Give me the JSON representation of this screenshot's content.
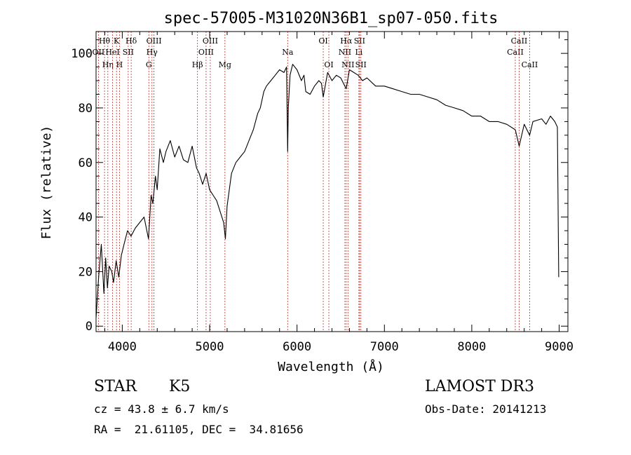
{
  "chart_data": {
    "type": "line",
    "title": "spec-57005-M31020N36B1_sp07-050.fits",
    "xlabel": "Wavelength (Å)",
    "ylabel": "Flux (relative)",
    "xlim": [
      3700,
      9100
    ],
    "ylim": [
      -2,
      108
    ],
    "xticks": [
      4000,
      5000,
      6000,
      7000,
      8000,
      9000
    ],
    "yticks": [
      0,
      20,
      40,
      60,
      80,
      100
    ],
    "grid": false,
    "series": [
      {
        "name": "spectrum",
        "x": [
          3700,
          3730,
          3760,
          3790,
          3810,
          3830,
          3850,
          3880,
          3900,
          3930,
          3960,
          3990,
          4020,
          4060,
          4100,
          4150,
          4200,
          4250,
          4300,
          4330,
          4350,
          4380,
          4400,
          4430,
          4470,
          4500,
          4550,
          4600,
          4650,
          4700,
          4750,
          4800,
          4850,
          4880,
          4920,
          4960,
          5000,
          5040,
          5080,
          5120,
          5160,
          5180,
          5200,
          5250,
          5300,
          5350,
          5400,
          5450,
          5500,
          5550,
          5580,
          5620,
          5650,
          5700,
          5750,
          5800,
          5850,
          5880,
          5893,
          5900,
          5920,
          5950,
          6000,
          6050,
          6080,
          6100,
          6150,
          6200,
          6250,
          6280,
          6300,
          6350,
          6400,
          6450,
          6500,
          6563,
          6600,
          6650,
          6700,
          6750,
          6800,
          6900,
          7000,
          7100,
          7200,
          7300,
          7400,
          7500,
          7600,
          7700,
          7800,
          7900,
          8000,
          8100,
          8200,
          8300,
          8400,
          8498,
          8542,
          8600,
          8662,
          8700,
          8800,
          8850,
          8900,
          8950,
          8980,
          8995
        ],
        "values": [
          3,
          18,
          30,
          12,
          25,
          14,
          22,
          20,
          16,
          24,
          18,
          26,
          30,
          35,
          33,
          36,
          38,
          40,
          32,
          48,
          45,
          55,
          50,
          65,
          60,
          64,
          68,
          62,
          66,
          61,
          60,
          66,
          58,
          56,
          52,
          56,
          50,
          48,
          46,
          42,
          38,
          32,
          44,
          56,
          60,
          62,
          64,
          68,
          72,
          78,
          80,
          86,
          88,
          90,
          92,
          94,
          93,
          95,
          64,
          80,
          92,
          96,
          94,
          90,
          92,
          86,
          85,
          88,
          90,
          89,
          84,
          93,
          90,
          92,
          91,
          87,
          94,
          93,
          92,
          90,
          91,
          88,
          88,
          87,
          86,
          85,
          85,
          84,
          83,
          81,
          80,
          79,
          77,
          77,
          75,
          75,
          74,
          72,
          66,
          74,
          70,
          75,
          76,
          74,
          77,
          75,
          73,
          18
        ]
      }
    ],
    "line_markers": [
      {
        "wavelength": 3797,
        "label": "Hθ",
        "row": 1
      },
      {
        "wavelength": 3727,
        "label": "OII",
        "row": 2
      },
      {
        "wavelength": 3835,
        "label": "Hη",
        "row": 3
      },
      {
        "wavelength": 3889,
        "label": "HeI",
        "row": 2
      },
      {
        "wavelength": 3934,
        "label": "K",
        "row": 1
      },
      {
        "wavelength": 3968,
        "label": "H",
        "row": 3
      },
      {
        "wavelength": 4068,
        "label": "SII",
        "row": 2
      },
      {
        "wavelength": 4102,
        "label": "Hδ",
        "row": 1
      },
      {
        "wavelength": 4304,
        "label": "G",
        "row": 3
      },
      {
        "wavelength": 4340,
        "label": "Hγ",
        "row": 2
      },
      {
        "wavelength": 4363,
        "label": "OIII",
        "row": 1
      },
      {
        "wavelength": 4861,
        "label": "Hβ",
        "row": 3
      },
      {
        "wavelength": 4959,
        "label": "OIII",
        "row": 2
      },
      {
        "wavelength": 5007,
        "label": "OIII",
        "row": 1
      },
      {
        "wavelength": 5175,
        "label": "Mg",
        "row": 3
      },
      {
        "wavelength": 5893,
        "label": "Na",
        "row": 2
      },
      {
        "wavelength": 6300,
        "label": "OI",
        "row": 1
      },
      {
        "wavelength": 6364,
        "label": "OI",
        "row": 3
      },
      {
        "wavelength": 6548,
        "label": "NII",
        "row": 2
      },
      {
        "wavelength": 6563,
        "label": "Hα",
        "row": 1
      },
      {
        "wavelength": 6583,
        "label": "NII",
        "row": 3
      },
      {
        "wavelength": 6708,
        "label": "Li",
        "row": 2
      },
      {
        "wavelength": 6716,
        "label": "SII",
        "row": 1
      },
      {
        "wavelength": 6731,
        "label": "SII",
        "row": 3
      },
      {
        "wavelength": 8498,
        "label": "CaII",
        "row": 2
      },
      {
        "wavelength": 8542,
        "label": "CaII",
        "row": 1
      },
      {
        "wavelength": 8662,
        "label": "CaII",
        "row": 3
      }
    ]
  },
  "info": {
    "class": "STAR",
    "subclass": "K5",
    "survey": "LAMOST DR3",
    "cz": "cz = 43.8 ± 6.7 km/s",
    "obs_date": "Obs-Date: 20141213",
    "coords": "RA =  21.61105, DEC =  34.81656"
  }
}
